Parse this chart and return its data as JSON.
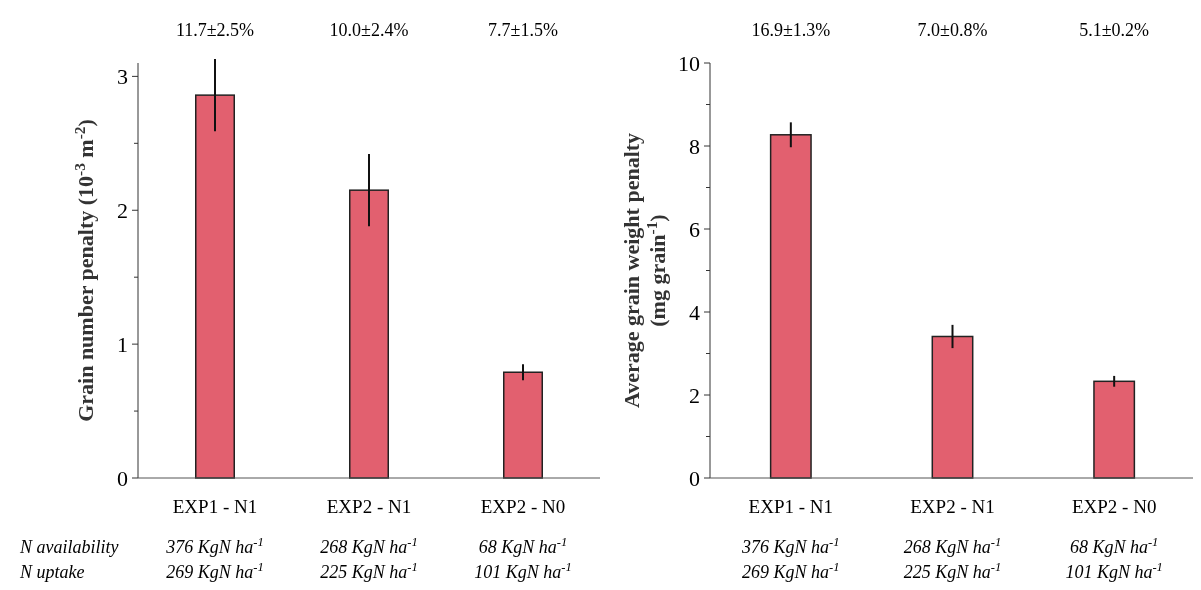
{
  "chart_data": [
    {
      "type": "bar",
      "ylabel": "Grain number penalty (10$^{-3}$ m$^{-2}$)",
      "categories": [
        "EXP1 - N1",
        "EXP2 - N1",
        "EXP2 - N0"
      ],
      "values": [
        2.86,
        2.15,
        0.79
      ],
      "errors": [
        0.27,
        0.27,
        0.06
      ],
      "color": "#e2606f",
      "ylim": [
        0,
        3.1
      ],
      "yticks": [
        0,
        {
          "value": 0.5,
          "label": null
        },
        1,
        {
          "value": 1.5,
          "label": null
        },
        2,
        {
          "value": 2.5,
          "label": null
        },
        3
      ],
      "grid": false,
      "annotations": [
        "11.7±2.5%",
        "10.0±2.4%",
        "7.7±1.5%",
        "N availability",
        "376 KgN ha$^{-1}$",
        "268 KgN ha$^{-1}$",
        "68 KgN ha$^{-1}$",
        "N uptake",
        "269 KgN ha$^{-1}$",
        "225 KgN ha$^{-1}$",
        "101 KgN ha$^{-1}$"
      ]
    },
    {
      "type": "bar",
      "ylabel": "Average grain weight penalty (mg grain$^{-1}$)",
      "categories": [
        "EXP1 - N1",
        "EXP2 - N1",
        "EXP2 - N0"
      ],
      "values": [
        8.27,
        3.41,
        2.33
      ],
      "errors": [
        0.3,
        0.28,
        0.13
      ],
      "color": "#e2606f",
      "ylim": [
        0,
        10
      ],
      "yticks": [
        0,
        {
          "value": 1,
          "label": null
        },
        2,
        {
          "value": 3,
          "label": null
        },
        4,
        {
          "value": 5,
          "label": null
        },
        6,
        {
          "value": 7,
          "label": null
        },
        8,
        {
          "value": 9,
          "label": null
        },
        10
      ],
      "grid": false,
      "annotations": [
        "16.9±1.3%",
        "7.0±0.8%",
        "5.1±0.2%",
        "376 KgN ha$^{-1}$",
        "268 KgN ha$^{-1}$",
        "68 KgN ha$^{-1}$",
        "269 KgN ha$^{-1}$",
        "225 KgN ha$^{-1}$",
        "101 KgN ha$^{-1}$"
      ]
    }
  ]
}
